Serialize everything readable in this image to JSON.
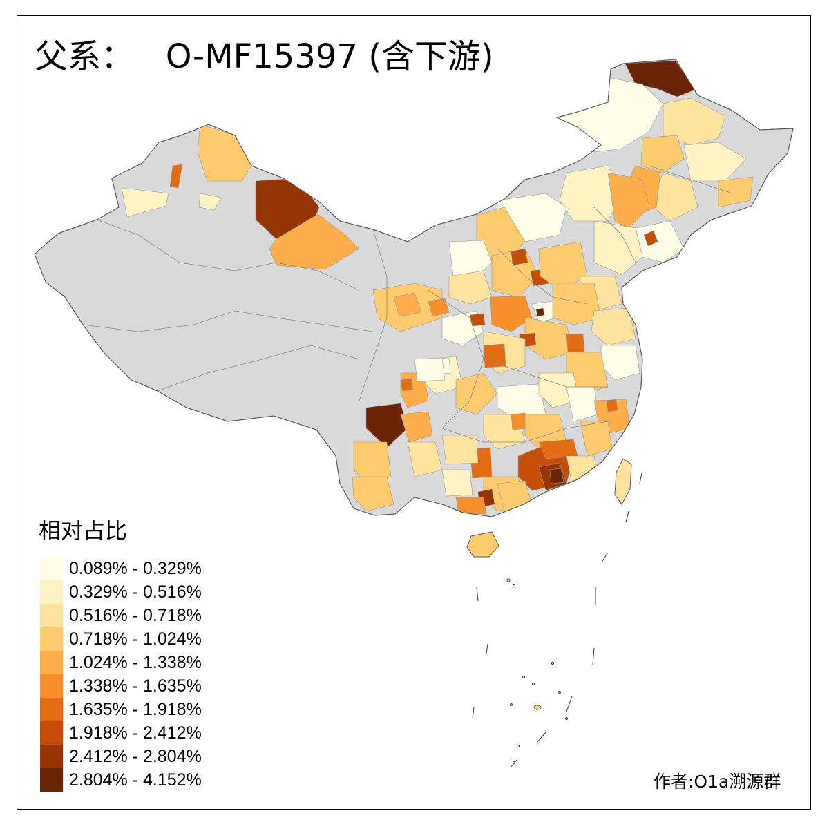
{
  "title": "父系：   O-MF15397 (含下游)",
  "legend": {
    "title": "相对占比",
    "classes": [
      {
        "label": "0.089% - 0.329%",
        "color": "#fffde7"
      },
      {
        "label": "0.329% - 0.516%",
        "color": "#fff3c4"
      },
      {
        "label": "0.516% - 0.718%",
        "color": "#fee39e"
      },
      {
        "label": "0.718% - 1.024%",
        "color": "#fecb6e"
      },
      {
        "label": "1.024% - 1.338%",
        "color": "#fdae4b"
      },
      {
        "label": "1.338% - 1.635%",
        "color": "#f68f2c"
      },
      {
        "label": "1.635% - 1.918%",
        "color": "#e36d15"
      },
      {
        "label": "1.918% - 2.412%",
        "color": "#c54f08"
      },
      {
        "label": "2.412% - 2.804%",
        "color": "#973403"
      },
      {
        "label": "2.804% - 4.152%",
        "color": "#6b2306"
      }
    ]
  },
  "no_data_color": "#d9d9d9",
  "credit": "作者:O1a溯源群"
}
